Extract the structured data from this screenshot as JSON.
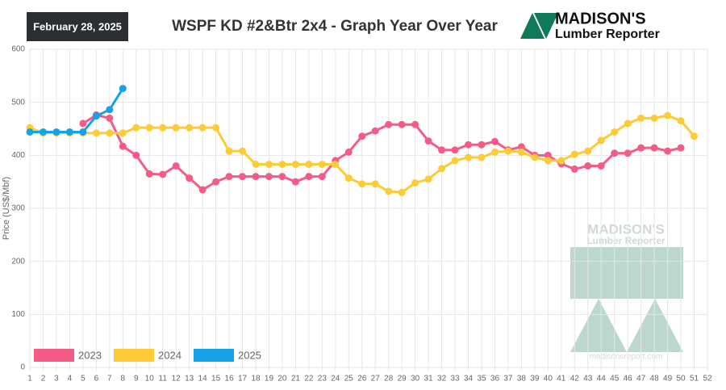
{
  "header": {
    "date": "February 28, 2025",
    "logo_name": "MADISON'S",
    "logo_sub": "Lumber Reporter"
  },
  "watermark": {
    "name": "MADISON'S",
    "sub": "Lumber Reporter",
    "url": "madisonsreport.com"
  },
  "chart_data": {
    "type": "line",
    "title": "WSPF KD #2&Btr 2x4 - Graph Year Over Year",
    "y_label": "Price (US$/Mbf)",
    "x": [
      1,
      2,
      3,
      4,
      5,
      6,
      7,
      8,
      9,
      10,
      11,
      12,
      13,
      14,
      15,
      16,
      17,
      18,
      19,
      20,
      21,
      22,
      23,
      24,
      25,
      26,
      27,
      28,
      29,
      30,
      31,
      32,
      33,
      34,
      35,
      36,
      37,
      38,
      39,
      40,
      41,
      42,
      43,
      44,
      45,
      46,
      47,
      48,
      49,
      50,
      51
    ],
    "series": [
      {
        "name": "2023",
        "color": "#f45b87",
        "values": [
          null,
          null,
          null,
          null,
          460,
          476,
          470,
          417,
          400,
          365,
          364,
          380,
          357,
          335,
          350,
          360,
          360,
          360,
          360,
          360,
          350,
          360,
          360,
          390,
          406,
          436,
          446,
          458,
          458,
          458,
          427,
          410,
          410,
          420,
          420,
          426,
          410,
          416,
          400,
          400,
          384,
          374,
          380,
          380,
          404,
          404,
          414,
          414,
          408,
          414,
          null
        ]
      },
      {
        "name": "2024",
        "color": "#fdcb37",
        "values": [
          452,
          442,
          442,
          442,
          442,
          442,
          442,
          442,
          452,
          452,
          452,
          452,
          452,
          452,
          452,
          408,
          408,
          383,
          383,
          383,
          383,
          383,
          383,
          383,
          357,
          346,
          346,
          332,
          330,
          348,
          355,
          375,
          390,
          396,
          396,
          406,
          408,
          406,
          396,
          390,
          390,
          402,
          408,
          428,
          444,
          460,
          470,
          470,
          475,
          465,
          436
        ]
      },
      {
        "name": "2025",
        "color": "#16a3e6",
        "values": [
          444,
          444,
          444,
          444,
          444,
          474,
          486,
          526,
          null,
          null,
          null,
          null,
          null,
          null,
          null,
          null,
          null,
          null,
          null,
          null,
          null,
          null,
          null,
          null,
          null,
          null,
          null,
          null,
          null,
          null,
          null,
          null,
          null,
          null,
          null,
          null,
          null,
          null,
          null,
          null,
          null,
          null,
          null,
          null,
          null,
          null,
          null,
          null,
          null,
          null,
          null
        ]
      }
    ],
    "xlim": [
      1,
      52
    ],
    "xticks": [
      1,
      2,
      3,
      4,
      5,
      6,
      7,
      8,
      9,
      10,
      11,
      12,
      13,
      14,
      15,
      16,
      17,
      18,
      19,
      20,
      21,
      22,
      23,
      24,
      25,
      26,
      27,
      28,
      29,
      30,
      31,
      32,
      33,
      34,
      35,
      36,
      37,
      38,
      39,
      40,
      41,
      42,
      43,
      44,
      45,
      46,
      47,
      48,
      49,
      50,
      51,
      52
    ],
    "ylim": [
      0,
      600
    ],
    "yticks": [
      0,
      100,
      200,
      300,
      400,
      500,
      600
    ],
    "grid": true
  }
}
